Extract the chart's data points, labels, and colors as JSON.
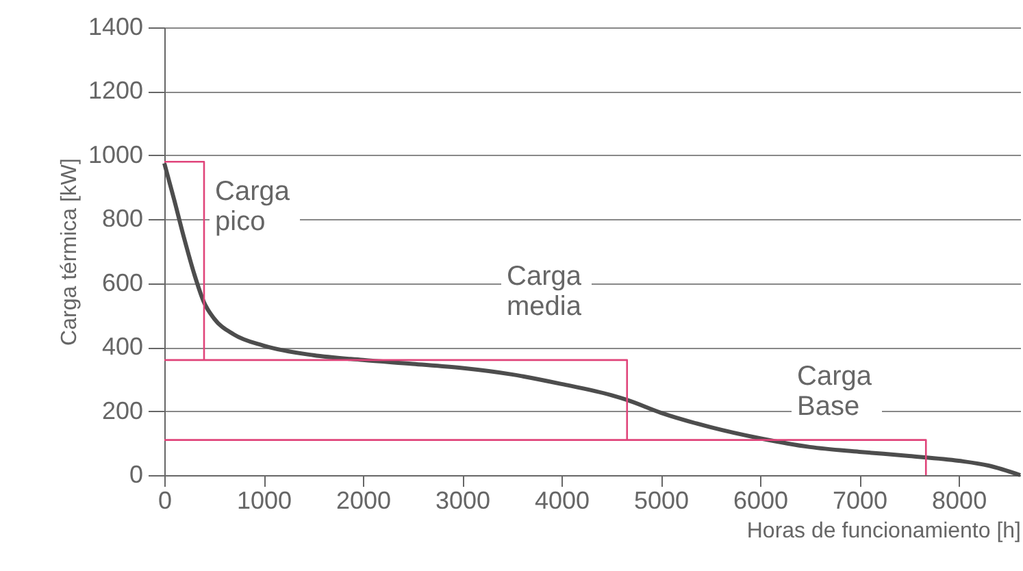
{
  "chart_data": {
    "type": "line",
    "xlabel": "Horas de funcionamiento [h]",
    "ylabel": "Carga térmica [kW]",
    "xlim": [
      0,
      8620
    ],
    "xticks": [
      0,
      1000,
      2000,
      3000,
      4000,
      5000,
      6000,
      7000,
      8000
    ],
    "ylim": [
      0,
      1400
    ],
    "yticks": [
      0,
      200,
      400,
      600,
      800,
      1000,
      1200,
      1400
    ],
    "grid": "y",
    "marker": "none",
    "line_style": "solid",
    "series": [
      {
        "color": "#4d4d4d",
        "x": [
          0,
          100,
          200,
          300,
          400,
          500,
          700,
          1000,
          1500,
          2000,
          2500,
          3000,
          3500,
          4000,
          4500,
          4660,
          5000,
          5500,
          6000,
          6500,
          7000,
          7500,
          8000,
          8300,
          8620
        ],
        "values": [
          975,
          860,
          740,
          630,
          540,
          490,
          440,
          405,
          375,
          360,
          348,
          335,
          315,
          285,
          250,
          235,
          195,
          150,
          115,
          88,
          73,
          60,
          45,
          30,
          0
        ]
      },
      {
        "color": "#e0447a",
        "x": [
          0,
          400,
          400
        ],
        "values": [
          980,
          980,
          360
        ]
      },
      {
        "color": "#e0447a",
        "x": [
          0,
          4660,
          4660
        ],
        "values": [
          360,
          360,
          110
        ]
      },
      {
        "color": "#e0447a",
        "x": [
          0,
          7670,
          7670
        ],
        "values": [
          110,
          110,
          0
        ]
      }
    ],
    "annotations": [
      "Carga pico",
      "Carga media",
      "Carga Base"
    ]
  }
}
